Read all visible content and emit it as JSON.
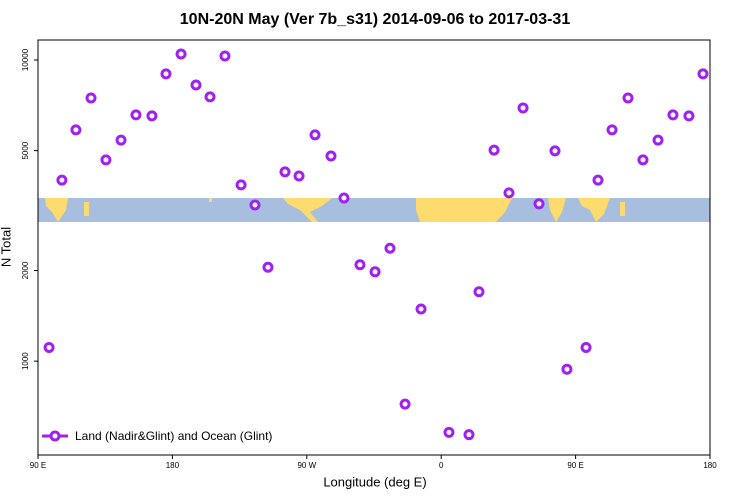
{
  "chart_data": {
    "type": "scatter",
    "title": "10N-20N May (Ver 7b_s31)   2014-09-06 to 2017-03-31",
    "x_label": "Longitude (deg E)",
    "y_label": "N Total",
    "log_y": true,
    "xlim": [
      90,
      540
    ],
    "ylim": [
      488,
      11650
    ],
    "xticks": [
      {
        "value": 90,
        "label": "90 E"
      },
      {
        "value": 180,
        "label": "180"
      },
      {
        "value": 270,
        "label": "90 W"
      },
      {
        "value": 360,
        "label": "0"
      },
      {
        "value": 450,
        "label": "90 E"
      },
      {
        "value": 540,
        "label": "180"
      }
    ],
    "yticks": [
      1000,
      2000,
      5000,
      10000
    ],
    "legend_position": "bottom-left",
    "series": [
      {
        "name": "Land (Nadir&Glint) and Ocean (Glint)",
        "color": "#a020f0",
        "x": [
          97.4,
          106,
          115.4,
          125.5,
          135.5,
          145.6,
          155.6,
          166.3,
          175.7,
          185.8,
          195.8,
          205.2,
          215.2,
          226,
          235.3,
          244,
          255.4,
          264.8,
          275.5,
          286.2,
          294.9,
          305.6,
          315.7,
          325.7,
          335.8,
          346.5,
          365.2,
          378.6,
          385.3,
          395.4,
          405.4,
          414.8,
          425.5,
          436.2,
          444.2,
          457,
          465,
          474.4,
          485.1,
          495.1,
          505.2,
          515.2,
          525.9,
          535.3
        ],
        "values": [
          1110,
          3990,
          5860,
          7480,
          4660,
          5420,
          6570,
          6520,
          8990,
          10470,
          8260,
          7540,
          10310,
          3850,
          3300,
          2050,
          4250,
          4120,
          5640,
          4800,
          3480,
          2090,
          1980,
          2370,
          720,
          1490,
          580,
          570,
          1700,
          5020,
          3620,
          6930,
          3330,
          4990,
          940,
          1110,
          3990,
          5860,
          7480,
          4660,
          5420,
          6570,
          6520,
          8990
        ]
      }
    ]
  }
}
